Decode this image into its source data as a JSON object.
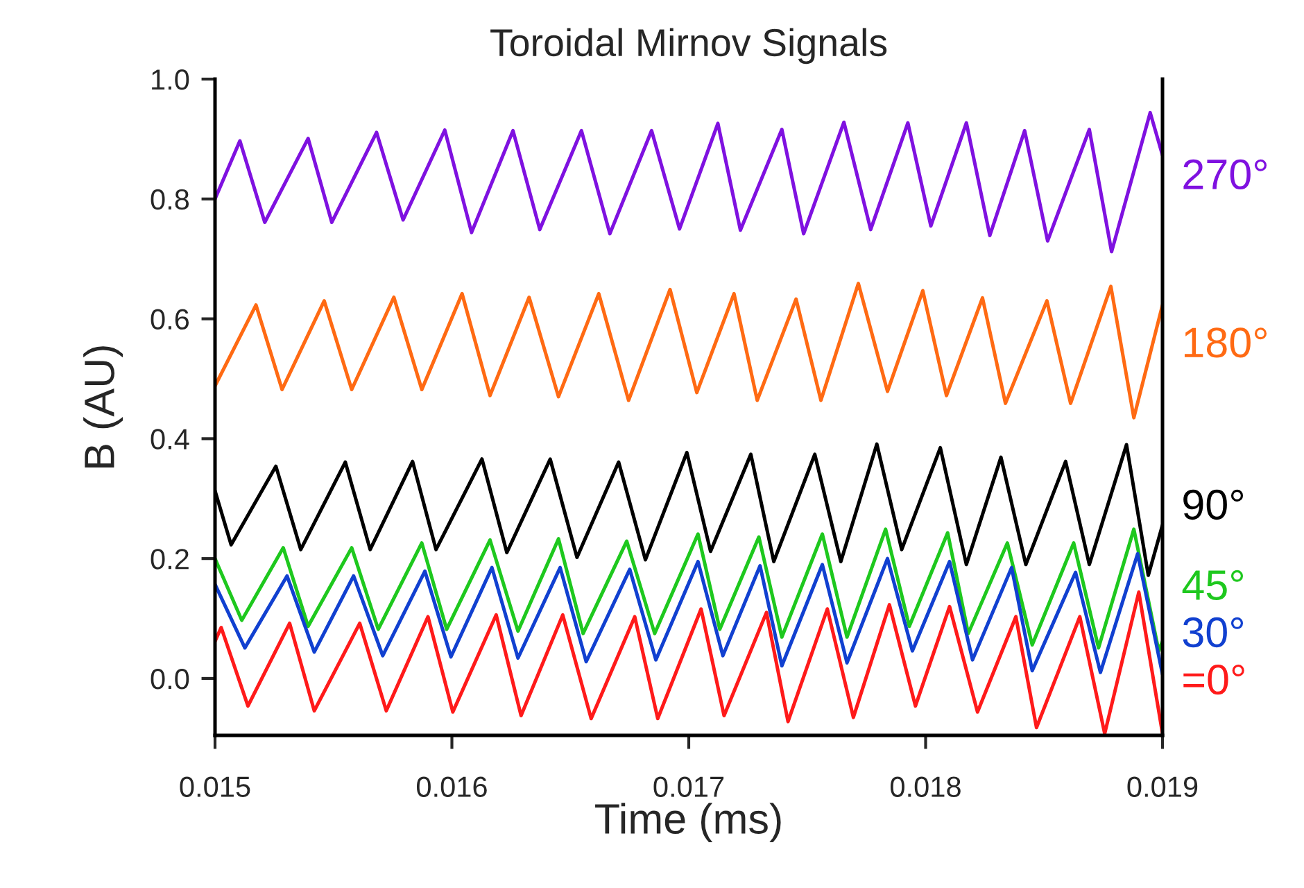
{
  "chart_data": {
    "type": "line",
    "title": "Toroidal Mirnov Signals",
    "xlabel": "Time (ms)",
    "ylabel": "B (AU)",
    "xlim": [
      0.015,
      0.019
    ],
    "xticks": [
      0.015,
      0.016,
      0.017,
      0.018,
      0.019
    ],
    "ylim": [
      -0.095,
      1.0
    ],
    "yticks": [
      {
        "value": 0,
        "label": "0.0"
      },
      0.2,
      0.4,
      0.6,
      0.8,
      {
        "value": 1,
        "label": "1.0"
      }
    ],
    "grid": false,
    "legend": false,
    "marker": "none",
    "line_style": "solid",
    "series": [
      {
        "name": "270°",
        "color": "#7f11e0",
        "x": [
          0.015,
          0.015105,
          0.01521,
          0.015393,
          0.015493,
          0.015682,
          0.015794,
          0.01597,
          0.016083,
          0.016258,
          0.016371,
          0.016547,
          0.016667,
          0.016843,
          0.016961,
          0.017123,
          0.017218,
          0.017393,
          0.017485,
          0.017655,
          0.017768,
          0.017925,
          0.018022,
          0.018172,
          0.018271,
          0.018418,
          0.018515,
          0.018691,
          0.018785,
          0.018948,
          0.019
        ],
        "values": [
          0.8,
          0.897,
          0.761,
          0.901,
          0.761,
          0.911,
          0.765,
          0.915,
          0.744,
          0.914,
          0.749,
          0.914,
          0.742,
          0.914,
          0.75,
          0.926,
          0.748,
          0.916,
          0.742,
          0.928,
          0.749,
          0.927,
          0.755,
          0.927,
          0.739,
          0.914,
          0.73,
          0.916,
          0.712,
          0.944,
          0.873
        ]
      },
      {
        "name": "180°",
        "color": "#ff6a13",
        "x": [
          0.015,
          0.015173,
          0.015283,
          0.015461,
          0.015577,
          0.015755,
          0.015873,
          0.016043,
          0.016161,
          0.016326,
          0.01645,
          0.01662,
          0.016746,
          0.016921,
          0.017034,
          0.017191,
          0.017289,
          0.017453,
          0.017558,
          0.017716,
          0.017839,
          0.017988,
          0.018088,
          0.01824,
          0.018337,
          0.018512,
          0.018612,
          0.018782,
          0.018879,
          0.019
        ],
        "values": [
          0.488,
          0.623,
          0.482,
          0.63,
          0.482,
          0.636,
          0.482,
          0.642,
          0.472,
          0.636,
          0.47,
          0.642,
          0.464,
          0.649,
          0.477,
          0.642,
          0.464,
          0.633,
          0.464,
          0.659,
          0.479,
          0.647,
          0.472,
          0.635,
          0.459,
          0.63,
          0.459,
          0.654,
          0.435,
          0.623
        ]
      },
      {
        "name": "90°",
        "color": "#000000",
        "x": [
          0.015,
          0.015068,
          0.015257,
          0.015362,
          0.01555,
          0.015655,
          0.015834,
          0.015933,
          0.016127,
          0.016232,
          0.016415,
          0.016528,
          0.016704,
          0.016817,
          0.016992,
          0.017092,
          0.017262,
          0.017359,
          0.017532,
          0.017642,
          0.017794,
          0.017899,
          0.018062,
          0.018172,
          0.018318,
          0.018423,
          0.018591,
          0.018691,
          0.018848,
          0.01894,
          0.019
        ],
        "values": [
          0.313,
          0.223,
          0.354,
          0.215,
          0.361,
          0.215,
          0.362,
          0.215,
          0.366,
          0.21,
          0.366,
          0.202,
          0.361,
          0.198,
          0.377,
          0.212,
          0.374,
          0.195,
          0.374,
          0.195,
          0.391,
          0.215,
          0.385,
          0.19,
          0.369,
          0.19,
          0.362,
          0.19,
          0.39,
          0.172,
          0.256
        ]
      },
      {
        "name": "45°",
        "color": "#1ec81e",
        "x": [
          0.015,
          0.015113,
          0.015288,
          0.015393,
          0.015577,
          0.015689,
          0.015873,
          0.015978,
          0.016161,
          0.016279,
          0.01645,
          0.016554,
          0.016738,
          0.016856,
          0.017039,
          0.017131,
          0.017296,
          0.017393,
          0.017564,
          0.017668,
          0.017831,
          0.017931,
          0.018093,
          0.01818,
          0.018345,
          0.01845,
          0.018625,
          0.01873,
          0.018879,
          0.018984,
          0.019
        ],
        "values": [
          0.2,
          0.097,
          0.218,
          0.087,
          0.218,
          0.082,
          0.226,
          0.082,
          0.231,
          0.079,
          0.233,
          0.075,
          0.229,
          0.075,
          0.241,
          0.082,
          0.236,
          0.069,
          0.241,
          0.069,
          0.249,
          0.087,
          0.243,
          0.075,
          0.226,
          0.056,
          0.226,
          0.051,
          0.249,
          0.046,
          0.062
        ]
      },
      {
        "name": "30°",
        "color": "#1140d0",
        "x": [
          0.015,
          0.015126,
          0.015304,
          0.015419,
          0.015585,
          0.015708,
          0.015886,
          0.015996,
          0.016169,
          0.016279,
          0.016457,
          0.016567,
          0.016751,
          0.016861,
          0.017039,
          0.017144,
          0.017301,
          0.017393,
          0.017564,
          0.017668,
          0.017839,
          0.017944,
          0.018101,
          0.018198,
          0.018363,
          0.01845,
          0.018633,
          0.018738,
          0.018895,
          0.019
        ],
        "values": [
          0.157,
          0.051,
          0.171,
          0.044,
          0.171,
          0.038,
          0.179,
          0.036,
          0.185,
          0.034,
          0.185,
          0.028,
          0.182,
          0.031,
          0.195,
          0.038,
          0.188,
          0.021,
          0.19,
          0.026,
          0.2,
          0.046,
          0.195,
          0.031,
          0.185,
          0.013,
          0.177,
          0.01,
          0.208,
          0.007
        ]
      },
      {
        "name": "=0°",
        "color": "#ff1a1a",
        "x": [
          0.015,
          0.015026,
          0.015139,
          0.015315,
          0.015419,
          0.015611,
          0.015723,
          0.015899,
          0.016004,
          0.016187,
          0.016292,
          0.016468,
          0.016588,
          0.016772,
          0.016869,
          0.017052,
          0.017149,
          0.017328,
          0.017419,
          0.017585,
          0.017695,
          0.017847,
          0.017957,
          0.018101,
          0.018219,
          0.018381,
          0.018468,
          0.018651,
          0.018756,
          0.0189,
          0.019
        ],
        "values": [
          0.062,
          0.085,
          -0.046,
          0.092,
          -0.054,
          0.092,
          -0.054,
          0.103,
          -0.056,
          0.106,
          -0.062,
          0.106,
          -0.067,
          0.103,
          -0.067,
          0.116,
          -0.062,
          0.11,
          -0.072,
          0.116,
          -0.065,
          0.123,
          -0.046,
          0.12,
          -0.056,
          0.103,
          -0.082,
          0.103,
          -0.092,
          0.144,
          -0.092
        ]
      }
    ]
  }
}
